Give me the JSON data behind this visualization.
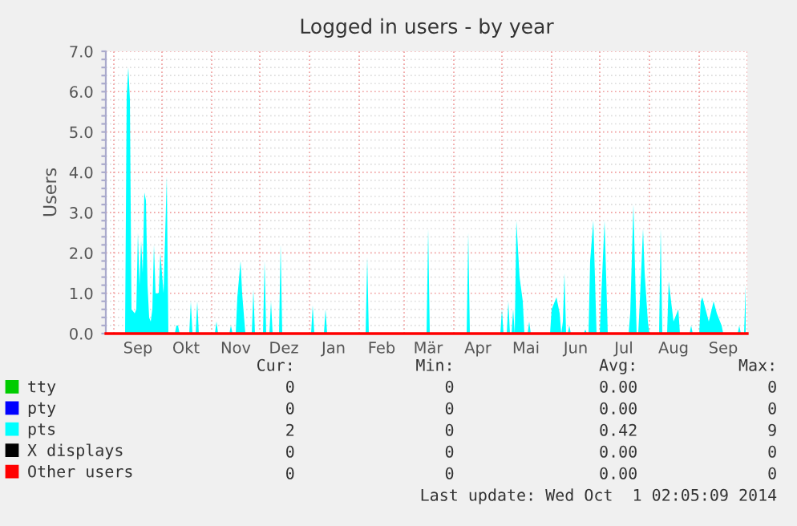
{
  "chart_data": {
    "type": "area",
    "title": "Logged in users - by year",
    "ylabel": "Users",
    "xlim": [
      "2013-08-27",
      "2014-10-01"
    ],
    "ylim": [
      0,
      7
    ],
    "yticks": [
      {
        "value": 0,
        "label": "0.0"
      },
      {
        "value": 0.2,
        "label": null
      },
      {
        "value": 0.4,
        "label": null
      },
      {
        "value": 0.6,
        "label": null
      },
      {
        "value": 0.8,
        "label": null
      },
      {
        "value": 1,
        "label": "1.0"
      },
      {
        "value": 1.2,
        "label": null
      },
      {
        "value": 1.4,
        "label": null
      },
      {
        "value": 1.6,
        "label": null
      },
      {
        "value": 1.8,
        "label": null
      },
      {
        "value": 2,
        "label": "2.0"
      },
      {
        "value": 2.2,
        "label": null
      },
      {
        "value": 2.4,
        "label": null
      },
      {
        "value": 2.6,
        "label": null
      },
      {
        "value": 2.8,
        "label": null
      },
      {
        "value": 3,
        "label": "3.0"
      },
      {
        "value": 3.2,
        "label": null
      },
      {
        "value": 3.4,
        "label": null
      },
      {
        "value": 3.6,
        "label": null
      },
      {
        "value": 3.8,
        "label": null
      },
      {
        "value": 4,
        "label": "4.0"
      },
      {
        "value": 4.2,
        "label": null
      },
      {
        "value": 4.4,
        "label": null
      },
      {
        "value": 4.6,
        "label": null
      },
      {
        "value": 4.8,
        "label": null
      },
      {
        "value": 5,
        "label": "5.0"
      },
      {
        "value": 5.2,
        "label": null
      },
      {
        "value": 5.4,
        "label": null
      },
      {
        "value": 5.6,
        "label": null
      },
      {
        "value": 5.8,
        "label": null
      },
      {
        "value": 6,
        "label": "6.0"
      },
      {
        "value": 6.2,
        "label": null
      },
      {
        "value": 6.4,
        "label": null
      },
      {
        "value": 6.6,
        "label": null
      },
      {
        "value": 6.8,
        "label": null
      },
      {
        "value": 7,
        "label": "7.0"
      }
    ],
    "xticks": [
      {
        "value": "2013-09-01",
        "label": null
      },
      {
        "value": "2013-09-16",
        "label": "Sep"
      },
      {
        "value": "2013-10-01",
        "label": null
      },
      {
        "value": "2013-10-16",
        "label": "Okt"
      },
      {
        "value": "2013-11-01",
        "label": null
      },
      {
        "value": "2013-11-16",
        "label": "Nov"
      },
      {
        "value": "2013-12-01",
        "label": null
      },
      {
        "value": "2013-12-16",
        "label": "Dez"
      },
      {
        "value": "2014-01-01",
        "label": null
      },
      {
        "value": "2014-01-16",
        "label": "Jan"
      },
      {
        "value": "2014-02-01",
        "label": null
      },
      {
        "value": "2014-02-15",
        "label": "Feb"
      },
      {
        "value": "2014-03-01",
        "label": null
      },
      {
        "value": "2014-03-16",
        "label": "Mär"
      },
      {
        "value": "2014-04-01",
        "label": null
      },
      {
        "value": "2014-04-16",
        "label": "Apr"
      },
      {
        "value": "2014-05-01",
        "label": null
      },
      {
        "value": "2014-05-16",
        "label": "Mai"
      },
      {
        "value": "2014-06-01",
        "label": null
      },
      {
        "value": "2014-06-16",
        "label": "Jun"
      },
      {
        "value": "2014-07-01",
        "label": null
      },
      {
        "value": "2014-07-16",
        "label": "Jul"
      },
      {
        "value": "2014-08-01",
        "label": null
      },
      {
        "value": "2014-08-16",
        "label": "Aug"
      },
      {
        "value": "2014-09-01",
        "label": null
      },
      {
        "value": "2014-09-16",
        "label": "Sep"
      },
      {
        "value": "2014-10-01",
        "label": null
      }
    ],
    "grid": true,
    "legend": "bottom",
    "series": [
      {
        "name": "tty",
        "type": "line",
        "color": "#00cc00"
      },
      {
        "name": "pty",
        "type": "line",
        "color": "#0000ff"
      },
      {
        "name": "pts",
        "color": "#00ffff",
        "x": [
          "2013-09-08",
          "2013-09-09",
          "2013-09-10",
          "2013-09-11",
          "2013-09-12",
          "2013-09-14",
          "2013-09-15",
          "2013-09-16",
          "2013-09-17",
          "2013-09-18",
          "2013-09-19",
          "2013-09-20",
          "2013-09-21",
          "2013-09-22",
          "2013-09-23",
          "2013-09-24",
          "2013-09-25",
          "2013-09-26",
          "2013-09-27",
          "2013-09-29",
          "2013-09-30",
          "2013-10-02",
          "2013-10-04",
          "2013-10-05",
          "2013-10-09",
          "2013-10-10",
          "2013-10-11",
          "2013-10-12",
          "2013-10-18",
          "2013-10-19",
          "2013-10-20",
          "2013-10-22",
          "2013-10-23",
          "2013-10-24",
          "2013-11-03",
          "2013-11-04",
          "2013-11-05",
          "2013-11-12",
          "2013-11-13",
          "2013-11-14",
          "2013-11-16",
          "2013-11-17",
          "2013-11-19",
          "2013-11-20",
          "2013-11-21",
          "2013-11-22",
          "2013-11-26",
          "2013-11-27",
          "2013-11-28",
          "2013-12-03",
          "2013-12-04",
          "2013-12-05",
          "2013-12-07",
          "2013-12-08",
          "2013-12-09",
          "2013-12-13",
          "2013-12-14",
          "2013-12-15",
          "2014-01-02",
          "2014-01-03",
          "2014-01-04",
          "2014-01-10",
          "2014-01-11",
          "2014-01-12",
          "2014-02-05",
          "2014-02-06",
          "2014-02-07",
          "2014-03-15",
          "2014-03-16",
          "2014-03-17",
          "2014-04-09",
          "2014-04-10",
          "2014-04-11",
          "2014-04-30",
          "2014-05-01",
          "2014-05-02",
          "2014-05-04",
          "2014-05-05",
          "2014-05-06",
          "2014-05-07",
          "2014-05-08",
          "2014-05-09",
          "2014-05-10",
          "2014-05-12",
          "2014-05-14",
          "2014-05-15",
          "2014-05-17",
          "2014-05-18",
          "2014-05-19",
          "2014-05-31",
          "2014-06-01",
          "2014-06-04",
          "2014-06-06",
          "2014-06-07",
          "2014-06-08",
          "2014-06-09",
          "2014-06-10",
          "2014-06-11",
          "2014-06-12",
          "2014-06-13",
          "2014-06-21",
          "2014-06-22",
          "2014-06-23",
          "2014-06-24",
          "2014-06-25",
          "2014-06-27",
          "2014-06-28",
          "2014-06-29",
          "2014-07-01",
          "2014-07-02",
          "2014-07-04",
          "2014-07-06",
          "2014-07-19",
          "2014-07-20",
          "2014-07-22",
          "2014-07-24",
          "2014-07-25",
          "2014-07-26",
          "2014-07-28",
          "2014-07-29",
          "2014-07-31",
          "2014-08-01",
          "2014-08-07",
          "2014-08-08",
          "2014-08-09",
          "2014-08-12",
          "2014-08-13",
          "2014-08-16",
          "2014-08-19",
          "2014-08-20",
          "2014-08-23",
          "2014-08-26",
          "2014-08-27",
          "2014-08-28",
          "2014-09-01",
          "2014-09-02",
          "2014-09-03",
          "2014-09-07",
          "2014-09-10",
          "2014-09-12",
          "2014-09-15",
          "2014-09-16",
          "2014-09-25",
          "2014-09-26",
          "2014-09-27",
          "2014-09-29",
          "2014-09-30"
        ],
        "values": [
          0,
          5.9,
          6.6,
          5.8,
          0.6,
          0.5,
          0.6,
          2.5,
          1.2,
          2.3,
          1.5,
          3.5,
          3.3,
          1.2,
          0.4,
          0.3,
          0.6,
          2.2,
          1.0,
          1.0,
          2.0,
          1.0,
          3.9,
          0,
          0,
          0.2,
          0.2,
          0,
          0,
          0.8,
          0,
          0,
          0.8,
          0,
          0,
          0.3,
          0,
          0,
          0.2,
          0,
          0,
          0.9,
          1.8,
          1.0,
          0.5,
          0,
          0,
          1.1,
          0,
          0,
          1.8,
          0,
          0,
          0.8,
          0,
          0,
          2.2,
          0,
          0,
          0.7,
          0,
          0,
          0.6,
          0,
          0,
          1.9,
          0,
          0,
          2.6,
          0,
          0,
          2.5,
          0,
          0,
          0.6,
          0,
          0,
          0.8,
          0,
          0,
          0.6,
          0,
          2.8,
          1.4,
          0.8,
          0,
          0,
          0.3,
          0,
          0,
          0.6,
          0.9,
          0.5,
          0,
          0.3,
          1.5,
          0,
          0,
          0.2,
          0,
          0,
          0.1,
          0,
          0,
          1.8,
          2.8,
          1.4,
          0,
          0,
          1.0,
          2.8,
          0,
          0,
          0.5,
          3.2,
          0,
          0,
          0.8,
          2.6,
          1.5,
          0.3,
          0,
          0,
          2.6,
          0,
          0,
          1.3,
          0.3,
          0.6,
          0,
          0,
          0,
          0.2,
          0,
          0,
          0.8,
          0.9,
          0.3,
          0.8,
          0.5,
          0.2,
          0,
          0,
          0.2,
          0,
          0,
          1.2
        ]
      },
      {
        "name": "X displays",
        "type": "line",
        "color": "#000000"
      },
      {
        "name": "Other users",
        "type": "line",
        "color": "#ff0000",
        "x": [
          "2013-08-27",
          "2014-10-01"
        ],
        "values": [
          0,
          0
        ]
      }
    ],
    "annotations": [
      "Cur:",
      "Min:",
      "Avg:",
      "Max:",
      "0",
      "0",
      "0.00",
      "0",
      "0",
      "0",
      "0.00",
      "0",
      "2",
      "0",
      "0.42",
      "9",
      "0",
      "0",
      "0.00",
      "0",
      "0",
      "0",
      "0.00",
      "0",
      "Last update: Wed Oct  1 02:05:09 2014"
    ]
  }
}
